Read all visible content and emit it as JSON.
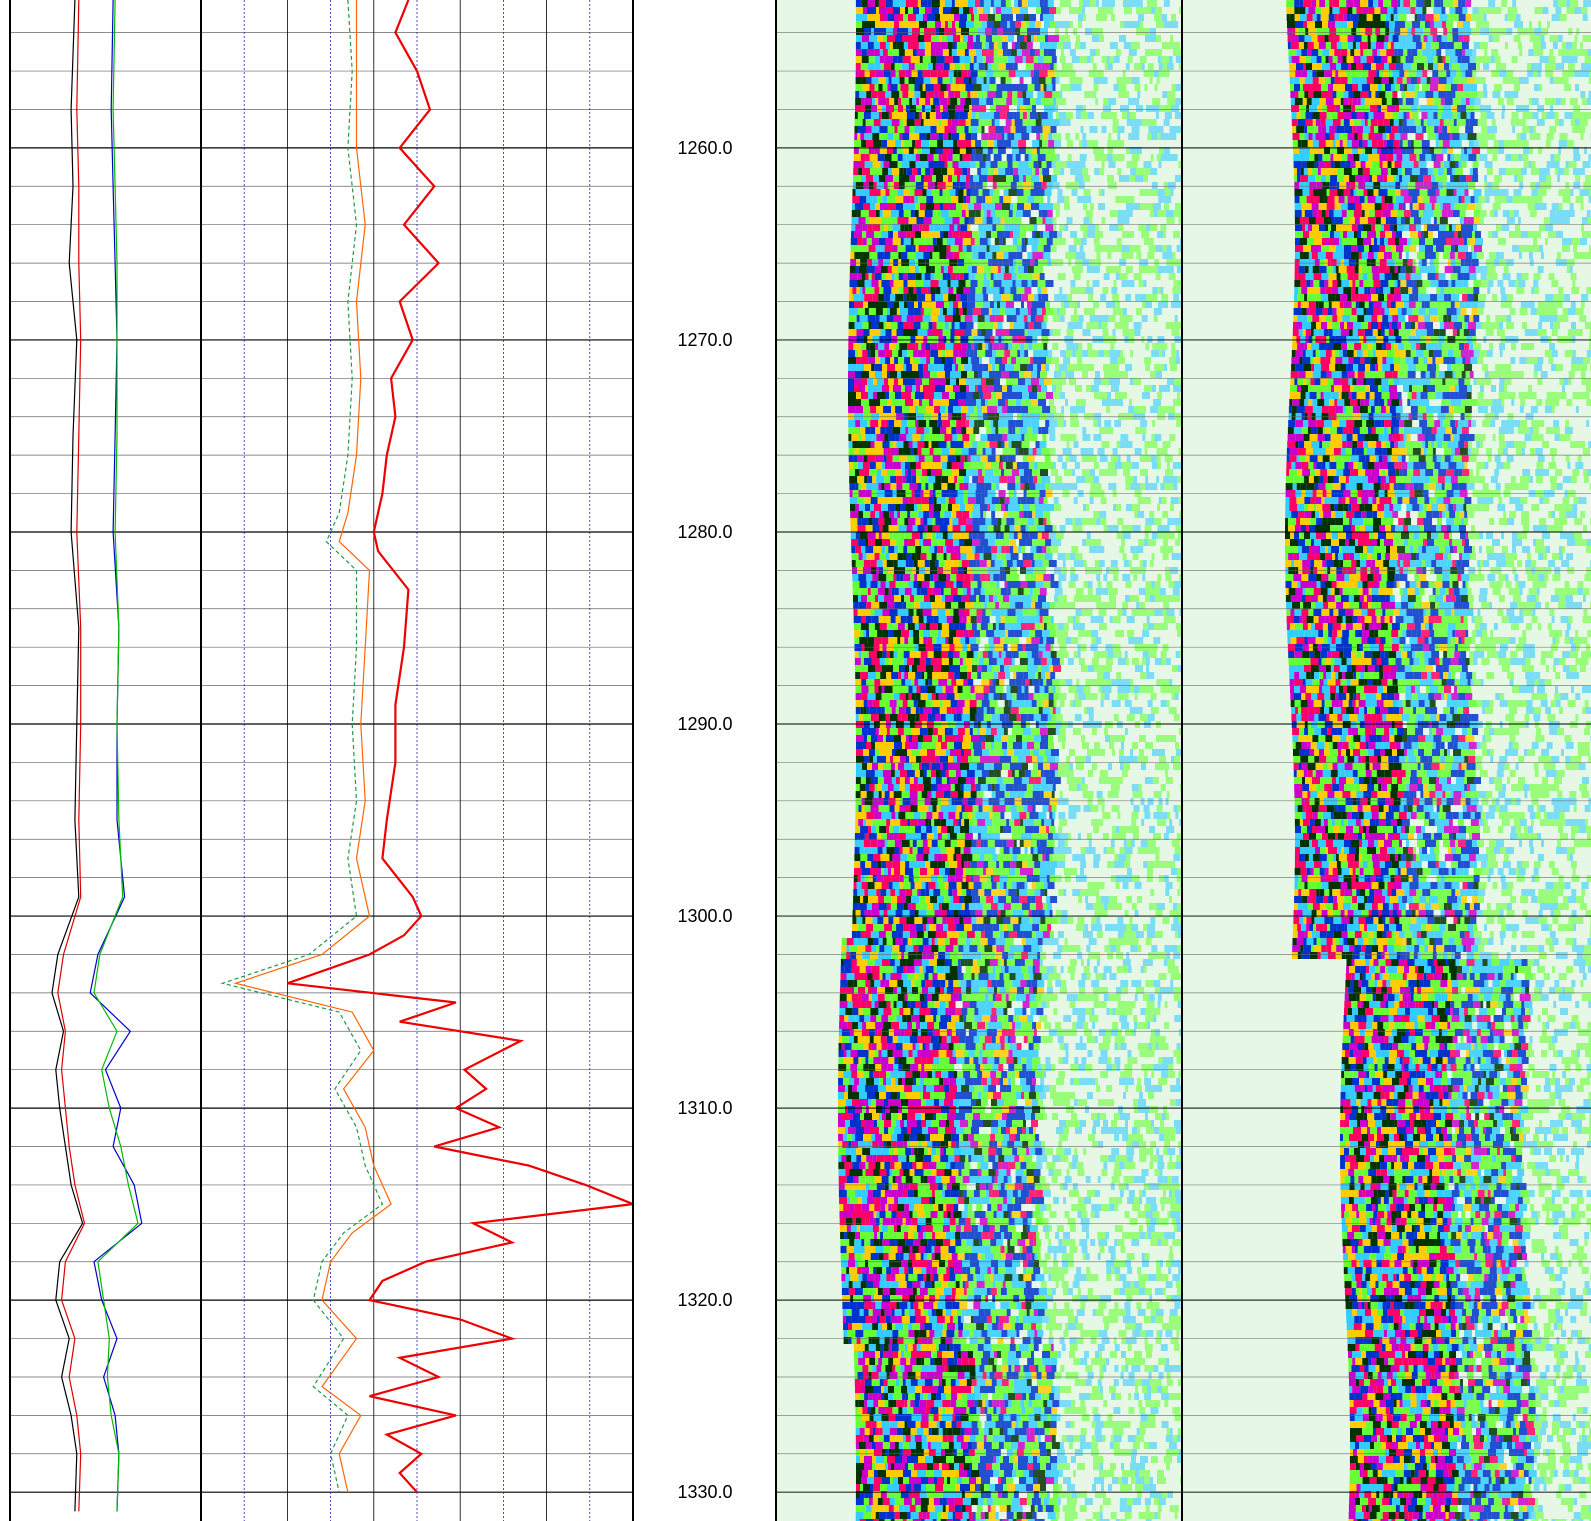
{
  "colors": {
    "grid_major": "#000000",
    "grid_minor": "#666666",
    "grid_dotted": "#2222aa",
    "caliper_1": "#000000",
    "caliper_2": "#dd0000",
    "caliper_3": "#0000cc",
    "caliper_4": "#00bb00",
    "curve_orange": "#ff6600",
    "curve_green_dashed": "#229944",
    "curve_red": "#ee0000",
    "image_background": "#e6f7e6"
  },
  "chart_data": {
    "type": "line",
    "title": "",
    "depth_axis": {
      "range": [
        1252.3,
        1331.5
      ],
      "tick_labels": [
        "1260.0",
        "1270.0",
        "1280.0",
        "1290.0",
        "1300.0",
        "1310.0",
        "1320.0",
        "1330.0"
      ],
      "major_step": 10,
      "minor_step": 2
    },
    "tracks": [
      {
        "name": "",
        "type": "line",
        "x_range": [
          0,
          10
        ],
        "series": [
          {
            "color": "caliper_1",
            "values": [
              [
                1252.3,
                3.4
              ],
              [
                1258,
                3.2
              ],
              [
                1262,
                3.3
              ],
              [
                1266,
                3.1
              ],
              [
                1270,
                3.5
              ],
              [
                1275,
                3.3
              ],
              [
                1280,
                3.2
              ],
              [
                1285,
                3.6
              ],
              [
                1290,
                3.5
              ],
              [
                1295,
                3.4
              ],
              [
                1299,
                3.6
              ],
              [
                1302,
                2.5
              ],
              [
                1304,
                2.2
              ],
              [
                1306,
                2.8
              ],
              [
                1308,
                2.4
              ],
              [
                1310,
                2.6
              ],
              [
                1312,
                2.9
              ],
              [
                1314,
                3.2
              ],
              [
                1316,
                3.8
              ],
              [
                1318,
                2.6
              ],
              [
                1320,
                2.4
              ],
              [
                1322,
                3.1
              ],
              [
                1324,
                2.7
              ],
              [
                1326,
                3.2
              ],
              [
                1328,
                3.5
              ],
              [
                1331,
                3.4
              ]
            ]
          },
          {
            "color": "caliper_2",
            "values": [
              [
                1252.3,
                3.6
              ],
              [
                1258,
                3.5
              ],
              [
                1262,
                3.6
              ],
              [
                1266,
                3.6
              ],
              [
                1270,
                3.7
              ],
              [
                1275,
                3.6
              ],
              [
                1280,
                3.5
              ],
              [
                1285,
                3.7
              ],
              [
                1290,
                3.7
              ],
              [
                1295,
                3.6
              ],
              [
                1299,
                3.7
              ],
              [
                1302,
                2.8
              ],
              [
                1304,
                2.5
              ],
              [
                1306,
                2.9
              ],
              [
                1308,
                2.7
              ],
              [
                1310,
                2.9
              ],
              [
                1312,
                3.1
              ],
              [
                1314,
                3.4
              ],
              [
                1316,
                3.9
              ],
              [
                1318,
                2.9
              ],
              [
                1320,
                2.7
              ],
              [
                1322,
                3.4
              ],
              [
                1324,
                3.1
              ],
              [
                1326,
                3.5
              ],
              [
                1328,
                3.7
              ],
              [
                1331,
                3.6
              ]
            ]
          },
          {
            "color": "caliper_3",
            "values": [
              [
                1252.3,
                5.4
              ],
              [
                1258,
                5.3
              ],
              [
                1262,
                5.4
              ],
              [
                1266,
                5.5
              ],
              [
                1270,
                5.6
              ],
              [
                1275,
                5.5
              ],
              [
                1280,
                5.4
              ],
              [
                1285,
                5.7
              ],
              [
                1290,
                5.6
              ],
              [
                1295,
                5.6
              ],
              [
                1299,
                6.0
              ],
              [
                1302,
                4.6
              ],
              [
                1304,
                4.2
              ],
              [
                1306,
                6.3
              ],
              [
                1308,
                5.0
              ],
              [
                1310,
                5.8
              ],
              [
                1312,
                5.4
              ],
              [
                1314,
                6.5
              ],
              [
                1316,
                6.9
              ],
              [
                1318,
                4.4
              ],
              [
                1320,
                4.8
              ],
              [
                1322,
                5.6
              ],
              [
                1324,
                4.9
              ],
              [
                1326,
                5.5
              ],
              [
                1328,
                5.7
              ],
              [
                1331,
                5.6
              ]
            ]
          },
          {
            "color": "caliper_4",
            "values": [
              [
                1252.3,
                5.5
              ],
              [
                1258,
                5.4
              ],
              [
                1262,
                5.5
              ],
              [
                1266,
                5.6
              ],
              [
                1270,
                5.6
              ],
              [
                1275,
                5.6
              ],
              [
                1280,
                5.5
              ],
              [
                1285,
                5.7
              ],
              [
                1290,
                5.6
              ],
              [
                1295,
                5.7
              ],
              [
                1299,
                5.9
              ],
              [
                1302,
                4.7
              ],
              [
                1304,
                4.4
              ],
              [
                1306,
                5.6
              ],
              [
                1308,
                4.8
              ],
              [
                1310,
                5.2
              ],
              [
                1312,
                5.8
              ],
              [
                1314,
                6.2
              ],
              [
                1316,
                6.7
              ],
              [
                1318,
                4.6
              ],
              [
                1320,
                4.9
              ],
              [
                1322,
                5.2
              ],
              [
                1324,
                5.1
              ],
              [
                1326,
                5.3
              ],
              [
                1328,
                5.7
              ],
              [
                1331,
                5.6
              ]
            ]
          }
        ]
      },
      {
        "name": "",
        "type": "line",
        "x_range": [
          0,
          10
        ],
        "series": [
          {
            "color": "curve_green_dashed",
            "values": [
              [
                1252.3,
                3.4
              ],
              [
                1256,
                3.5
              ],
              [
                1260,
                3.4
              ],
              [
                1264,
                3.6
              ],
              [
                1268,
                3.4
              ],
              [
                1272,
                3.5
              ],
              [
                1276,
                3.4
              ],
              [
                1279,
                3.2
              ],
              [
                1280.5,
                2.9
              ],
              [
                1282,
                3.6
              ],
              [
                1286,
                3.6
              ],
              [
                1290,
                3.5
              ],
              [
                1294,
                3.6
              ],
              [
                1297,
                3.4
              ],
              [
                1300,
                3.6
              ],
              [
                1302,
                2.5
              ],
              [
                1303.5,
                0.5
              ],
              [
                1305,
                3.2
              ],
              [
                1307,
                3.7
              ],
              [
                1309,
                3.1
              ],
              [
                1311,
                3.6
              ],
              [
                1313,
                3.8
              ],
              [
                1315,
                4.2
              ],
              [
                1316.5,
                3.3
              ],
              [
                1318,
                2.8
              ],
              [
                1320,
                2.6
              ],
              [
                1322,
                3.3
              ],
              [
                1324.5,
                2.6
              ],
              [
                1326,
                3.4
              ],
              [
                1328,
                3.0
              ],
              [
                1330,
                3.2
              ]
            ]
          },
          {
            "color": "curve_orange",
            "values": [
              [
                1252.3,
                3.6
              ],
              [
                1256,
                3.6
              ],
              [
                1260,
                3.6
              ],
              [
                1264,
                3.8
              ],
              [
                1268,
                3.6
              ],
              [
                1272,
                3.7
              ],
              [
                1276,
                3.6
              ],
              [
                1279,
                3.4
              ],
              [
                1280.5,
                3.2
              ],
              [
                1282,
                3.9
              ],
              [
                1286,
                3.8
              ],
              [
                1290,
                3.7
              ],
              [
                1294,
                3.8
              ],
              [
                1297,
                3.6
              ],
              [
                1300,
                3.9
              ],
              [
                1302,
                2.8
              ],
              [
                1303.5,
                0.8
              ],
              [
                1305,
                3.5
              ],
              [
                1307,
                4.0
              ],
              [
                1309,
                3.3
              ],
              [
                1311,
                3.8
              ],
              [
                1313,
                4.0
              ],
              [
                1315,
                4.4
              ],
              [
                1316.5,
                3.5
              ],
              [
                1318,
                3.0
              ],
              [
                1320,
                2.8
              ],
              [
                1322,
                3.6
              ],
              [
                1324.5,
                2.8
              ],
              [
                1326,
                3.7
              ],
              [
                1328,
                3.2
              ],
              [
                1330,
                3.4
              ]
            ]
          },
          {
            "color": "curve_red",
            "values": [
              [
                1252.3,
                4.8
              ],
              [
                1254,
                4.5
              ],
              [
                1256,
                5.0
              ],
              [
                1258,
                5.3
              ],
              [
                1260,
                4.6
              ],
              [
                1262,
                5.4
              ],
              [
                1264,
                4.7
              ],
              [
                1266,
                5.5
              ],
              [
                1268,
                4.6
              ],
              [
                1270,
                4.9
              ],
              [
                1272,
                4.4
              ],
              [
                1274,
                4.5
              ],
              [
                1276,
                4.3
              ],
              [
                1278,
                4.2
              ],
              [
                1280,
                4.0
              ],
              [
                1281,
                4.1
              ],
              [
                1283,
                4.8
              ],
              [
                1286,
                4.7
              ],
              [
                1289,
                4.5
              ],
              [
                1292,
                4.5
              ],
              [
                1295,
                4.3
              ],
              [
                1297,
                4.2
              ],
              [
                1299,
                4.9
              ],
              [
                1300,
                5.1
              ],
              [
                1301,
                4.7
              ],
              [
                1302,
                3.9
              ],
              [
                1303.5,
                2.0
              ],
              [
                1304.5,
                5.9
              ],
              [
                1305.5,
                4.6
              ],
              [
                1306.5,
                7.4
              ],
              [
                1308,
                6.1
              ],
              [
                1309,
                6.6
              ],
              [
                1310,
                5.9
              ],
              [
                1311,
                6.9
              ],
              [
                1312,
                5.4
              ],
              [
                1313,
                7.6
              ],
              [
                1314,
                8.9
              ],
              [
                1315,
                10.0
              ],
              [
                1316,
                6.3
              ],
              [
                1317,
                7.2
              ],
              [
                1318,
                5.2
              ],
              [
                1319,
                4.2
              ],
              [
                1320,
                3.9
              ],
              [
                1321,
                6.0
              ],
              [
                1322,
                7.2
              ],
              [
                1323,
                4.6
              ],
              [
                1324,
                5.5
              ],
              [
                1325,
                3.9
              ],
              [
                1326,
                5.9
              ],
              [
                1327,
                4.3
              ],
              [
                1328,
                5.1
              ],
              [
                1329,
                4.6
              ],
              [
                1330,
                5.0
              ]
            ]
          }
        ]
      },
      {
        "name": "",
        "type": "heatmap",
        "colorscale": [
          "#e6f7e6",
          "#66ff33",
          "#33ccff",
          "#0033cc",
          "#ffcc00",
          "#cc00cc",
          "#ff0066",
          "#003300"
        ]
      },
      {
        "name": "",
        "type": "heatmap",
        "colorscale": [
          "#e6f7e6",
          "#66ff33",
          "#33ccff",
          "#0033cc",
          "#ffcc00",
          "#cc00cc",
          "#ff0066",
          "#003300"
        ]
      }
    ]
  }
}
